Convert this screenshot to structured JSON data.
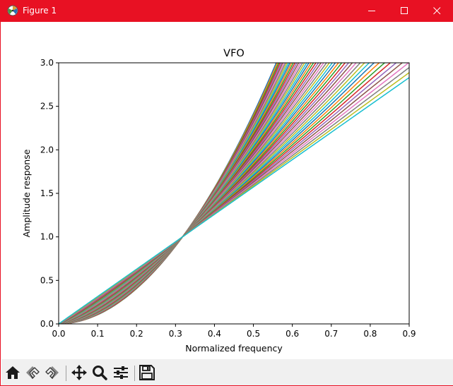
{
  "window": {
    "title": "Figure 1"
  },
  "toolbar": {
    "buttons": [
      {
        "name": "home",
        "icon": "home-icon"
      },
      {
        "name": "back",
        "icon": "back-arrow-icon"
      },
      {
        "name": "forward",
        "icon": "forward-arrow-icon"
      },
      {
        "name": "pan",
        "icon": "move-icon"
      },
      {
        "name": "zoom",
        "icon": "magnifier-icon"
      },
      {
        "name": "configure-subplots",
        "icon": "sliders-icon"
      },
      {
        "name": "save",
        "icon": "floppy-disk-icon"
      }
    ]
  },
  "chart_data": {
    "type": "line",
    "title": "VFO",
    "xlabel": "Normalized frequency",
    "ylabel": "Amplitude response",
    "xlim": [
      0.0,
      0.9
    ],
    "ylim": [
      0.0,
      3.0
    ],
    "x_ticks": [
      "0.0",
      "0.1",
      "0.2",
      "0.3",
      "0.4",
      "0.5",
      "0.6",
      "0.7",
      "0.8",
      "0.9"
    ],
    "y_ticks": [
      "0.0",
      "0.5",
      "1.0",
      "1.5",
      "2.0",
      "2.5",
      "3.0"
    ],
    "grid": false,
    "legend": "none",
    "crossing_point": {
      "x": 0.318,
      "y": 1.0
    },
    "family": {
      "count": 50,
      "exponent_min": 1.0,
      "exponent_max": 1.95,
      "ripple_amplitude": 0.03,
      "sample_x": [
        0.0,
        0.1,
        0.2,
        0.318,
        0.4,
        0.5,
        0.6,
        0.7,
        0.8,
        0.9
      ],
      "lowest_curve_y": [
        0.0,
        0.1,
        0.39,
        1.0,
        1.26,
        1.56,
        1.88,
        2.2,
        2.5,
        2.8
      ],
      "highest_curve_y": [
        0.0,
        0.11,
        0.4,
        1.0,
        1.56,
        2.43,
        3.0,
        3.0,
        3.0,
        3.0
      ]
    },
    "colors": [
      "#1f77b4",
      "#ff7f0e",
      "#2ca02c",
      "#d62728",
      "#9467bd",
      "#8c564b",
      "#e377c2",
      "#7f7f7f",
      "#bcbd22",
      "#17becf"
    ]
  }
}
